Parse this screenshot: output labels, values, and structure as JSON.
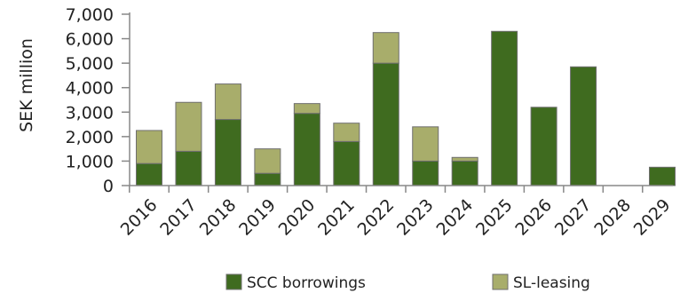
{
  "chart_data": {
    "type": "bar",
    "stacked": true,
    "title": "",
    "xlabel": "",
    "ylabel": "SEK million",
    "ylim": [
      0,
      7000
    ],
    "yticks": [
      "0",
      "1,000",
      "2,000",
      "3,000",
      "4,000",
      "5,000",
      "6,000",
      "7,000"
    ],
    "ytick_values": [
      0,
      1000,
      2000,
      3000,
      4000,
      5000,
      6000,
      7000
    ],
    "grid": false,
    "legend_position": "bottom",
    "categories": [
      "2016",
      "2017",
      "2018",
      "2019",
      "2020",
      "2021",
      "2022",
      "2023",
      "2024",
      "2025",
      "2026",
      "2027",
      "2028",
      "2029"
    ],
    "series": [
      {
        "name": "SCC borrowings",
        "color": "#3f6b1f",
        "values": [
          900,
          1400,
          2700,
          500,
          2950,
          1800,
          5000,
          1000,
          1000,
          6300,
          3200,
          4850,
          0,
          750
        ]
      },
      {
        "name": "SL-leasing",
        "color": "#a8ad6b",
        "values": [
          1350,
          2000,
          1450,
          1000,
          400,
          750,
          1250,
          1400,
          150,
          0,
          0,
          0,
          0,
          0
        ]
      }
    ]
  }
}
